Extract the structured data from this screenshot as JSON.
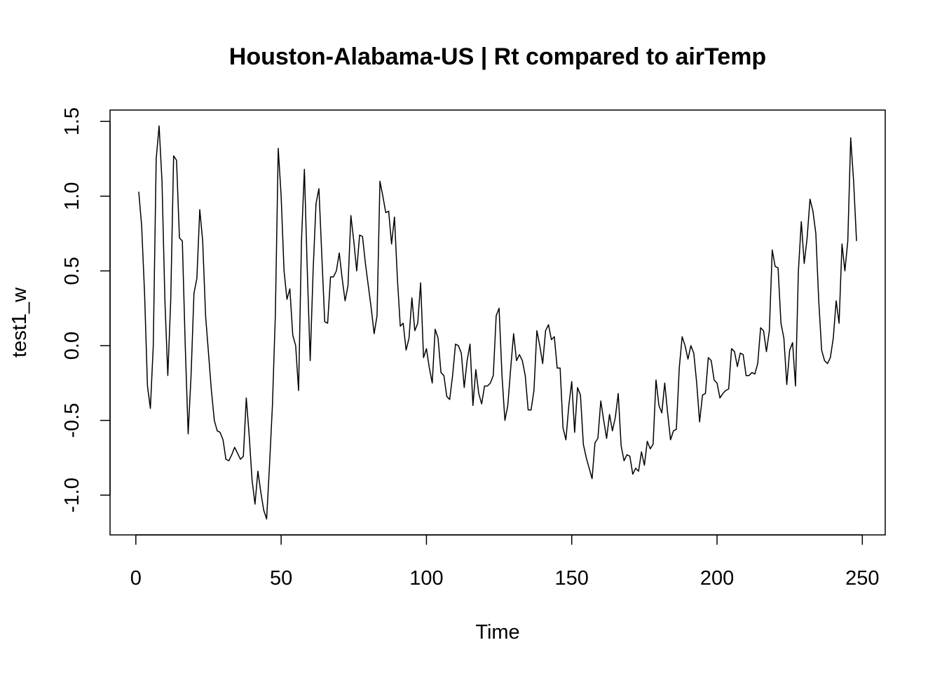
{
  "chart_data": {
    "type": "line",
    "title": "Houston-Alabama-US | Rt compared to airTemp",
    "x_label": "Time",
    "y_label": "test1_w",
    "x": [
      1,
      2,
      3,
      4,
      5,
      6,
      7,
      8,
      9,
      10,
      11,
      12,
      13,
      14,
      15,
      16,
      17,
      18,
      19,
      20,
      21,
      22,
      23,
      24,
      25,
      26,
      27,
      28,
      29,
      30,
      31,
      32,
      33,
      34,
      35,
      36,
      37,
      38,
      39,
      40,
      41,
      42,
      43,
      44,
      45,
      46,
      47,
      48,
      49,
      50,
      51,
      52,
      53,
      54,
      55,
      56,
      57,
      58,
      59,
      60,
      61,
      62,
      63,
      64,
      65,
      66,
      67,
      68,
      69,
      70,
      71,
      72,
      73,
      74,
      75,
      76,
      77,
      78,
      79,
      80,
      81,
      82,
      83,
      84,
      85,
      86,
      87,
      88,
      89,
      90,
      91,
      92,
      93,
      94,
      95,
      96,
      97,
      98,
      99,
      100,
      101,
      102,
      103,
      104,
      105,
      106,
      107,
      108,
      109,
      110,
      111,
      112,
      113,
      114,
      115,
      116,
      117,
      118,
      119,
      120,
      121,
      122,
      123,
      124,
      125,
      126,
      127,
      128,
      129,
      130,
      131,
      132,
      133,
      134,
      135,
      136,
      137,
      138,
      139,
      140,
      141,
      142,
      143,
      144,
      145,
      146,
      147,
      148,
      149,
      150,
      151,
      152,
      153,
      154,
      155,
      156,
      157,
      158,
      159,
      160,
      161,
      162,
      163,
      164,
      165,
      166,
      167,
      168,
      169,
      170,
      171,
      172,
      173,
      174,
      175,
      176,
      177,
      178,
      179,
      180,
      181,
      182,
      183,
      184,
      185,
      186,
      187,
      188,
      189,
      190,
      191,
      192,
      193,
      194,
      195,
      196,
      197,
      198,
      199,
      200,
      201,
      202,
      203,
      204,
      205,
      206,
      207,
      208,
      209,
      210,
      211,
      212,
      213,
      214,
      215,
      216,
      217,
      218,
      219,
      220,
      221,
      222,
      223,
      224,
      225,
      226,
      227,
      228,
      229,
      230,
      231,
      232,
      233,
      234,
      235,
      236,
      237,
      238,
      239,
      240,
      241,
      242,
      243,
      244,
      245,
      246,
      247,
      248
    ],
    "series": [
      {
        "color": "#000000",
        "values": [
          1.03,
          0.8,
          0.35,
          -0.27,
          -0.42,
          0.0,
          1.25,
          1.47,
          1.1,
          0.3,
          -0.2,
          0.3,
          1.27,
          1.24,
          0.72,
          0.7,
          0.0,
          -0.59,
          -0.2,
          0.35,
          0.45,
          0.91,
          0.7,
          0.2,
          -0.05,
          -0.3,
          -0.5,
          -0.57,
          -0.58,
          -0.63,
          -0.76,
          -0.77,
          -0.73,
          -0.68,
          -0.72,
          -0.76,
          -0.74,
          -0.35,
          -0.6,
          -0.9,
          -1.06,
          -0.84,
          -0.98,
          -1.1,
          -1.16,
          -0.8,
          -0.4,
          0.2,
          1.32,
          1.0,
          0.5,
          0.31,
          0.38,
          0.07,
          0.0,
          -0.3,
          0.7,
          1.18,
          0.5,
          -0.1,
          0.5,
          0.95,
          1.05,
          0.6,
          0.16,
          0.15,
          0.46,
          0.46,
          0.5,
          0.62,
          0.45,
          0.3,
          0.4,
          0.87,
          0.7,
          0.5,
          0.74,
          0.73,
          0.55,
          0.4,
          0.25,
          0.08,
          0.2,
          1.1,
          1.0,
          0.89,
          0.9,
          0.68,
          0.86,
          0.45,
          0.13,
          0.15,
          -0.03,
          0.05,
          0.32,
          0.1,
          0.15,
          0.42,
          -0.08,
          -0.02,
          -0.15,
          -0.25,
          0.11,
          0.05,
          -0.18,
          -0.2,
          -0.34,
          -0.36,
          -0.2,
          0.01,
          0.0,
          -0.05,
          -0.28,
          -0.1,
          0.01,
          -0.4,
          -0.16,
          -0.32,
          -0.39,
          -0.27,
          -0.27,
          -0.25,
          -0.2,
          0.2,
          0.25,
          -0.2,
          -0.5,
          -0.4,
          -0.15,
          0.08,
          -0.1,
          -0.06,
          -0.1,
          -0.2,
          -0.43,
          -0.43,
          -0.3,
          0.1,
          0.0,
          -0.12,
          0.1,
          0.14,
          0.04,
          0.06,
          -0.15,
          -0.15,
          -0.55,
          -0.63,
          -0.4,
          -0.24,
          -0.58,
          -0.28,
          -0.33,
          -0.66,
          -0.75,
          -0.82,
          -0.89,
          -0.65,
          -0.62,
          -0.37,
          -0.5,
          -0.62,
          -0.46,
          -0.57,
          -0.48,
          -0.32,
          -0.67,
          -0.77,
          -0.73,
          -0.74,
          -0.86,
          -0.82,
          -0.84,
          -0.71,
          -0.8,
          -0.64,
          -0.69,
          -0.66,
          -0.23,
          -0.4,
          -0.45,
          -0.25,
          -0.45,
          -0.63,
          -0.57,
          -0.56,
          -0.15,
          0.06,
          0.0,
          -0.09,
          0.0,
          -0.05,
          -0.25,
          -0.51,
          -0.33,
          -0.32,
          -0.08,
          -0.1,
          -0.23,
          -0.25,
          -0.35,
          -0.32,
          -0.3,
          -0.29,
          -0.02,
          -0.04,
          -0.14,
          -0.05,
          -0.06,
          -0.2,
          -0.2,
          -0.18,
          -0.19,
          -0.12,
          0.12,
          0.1,
          -0.04,
          0.1,
          0.64,
          0.53,
          0.52,
          0.15,
          0.05,
          -0.26,
          -0.03,
          0.02,
          -0.27,
          0.5,
          0.83,
          0.55,
          0.72,
          0.98,
          0.9,
          0.75,
          0.3,
          -0.03,
          -0.1,
          -0.12,
          -0.08,
          0.05,
          0.3,
          0.15,
          0.68,
          0.5,
          0.7,
          1.39,
          1.1,
          0.7
        ]
      }
    ],
    "xlim": [
      -8.88,
      257.88
    ],
    "xticks": [
      0,
      50,
      100,
      150,
      200,
      250
    ],
    "ylim": [
      -1.266,
      1.576
    ],
    "yticks": [
      {
        "value": -1.0,
        "label": "-1.0"
      },
      -0.5,
      {
        "value": 0.0,
        "label": "0.0"
      },
      0.5,
      {
        "value": 1.0,
        "label": "1.0"
      },
      1.5
    ]
  }
}
